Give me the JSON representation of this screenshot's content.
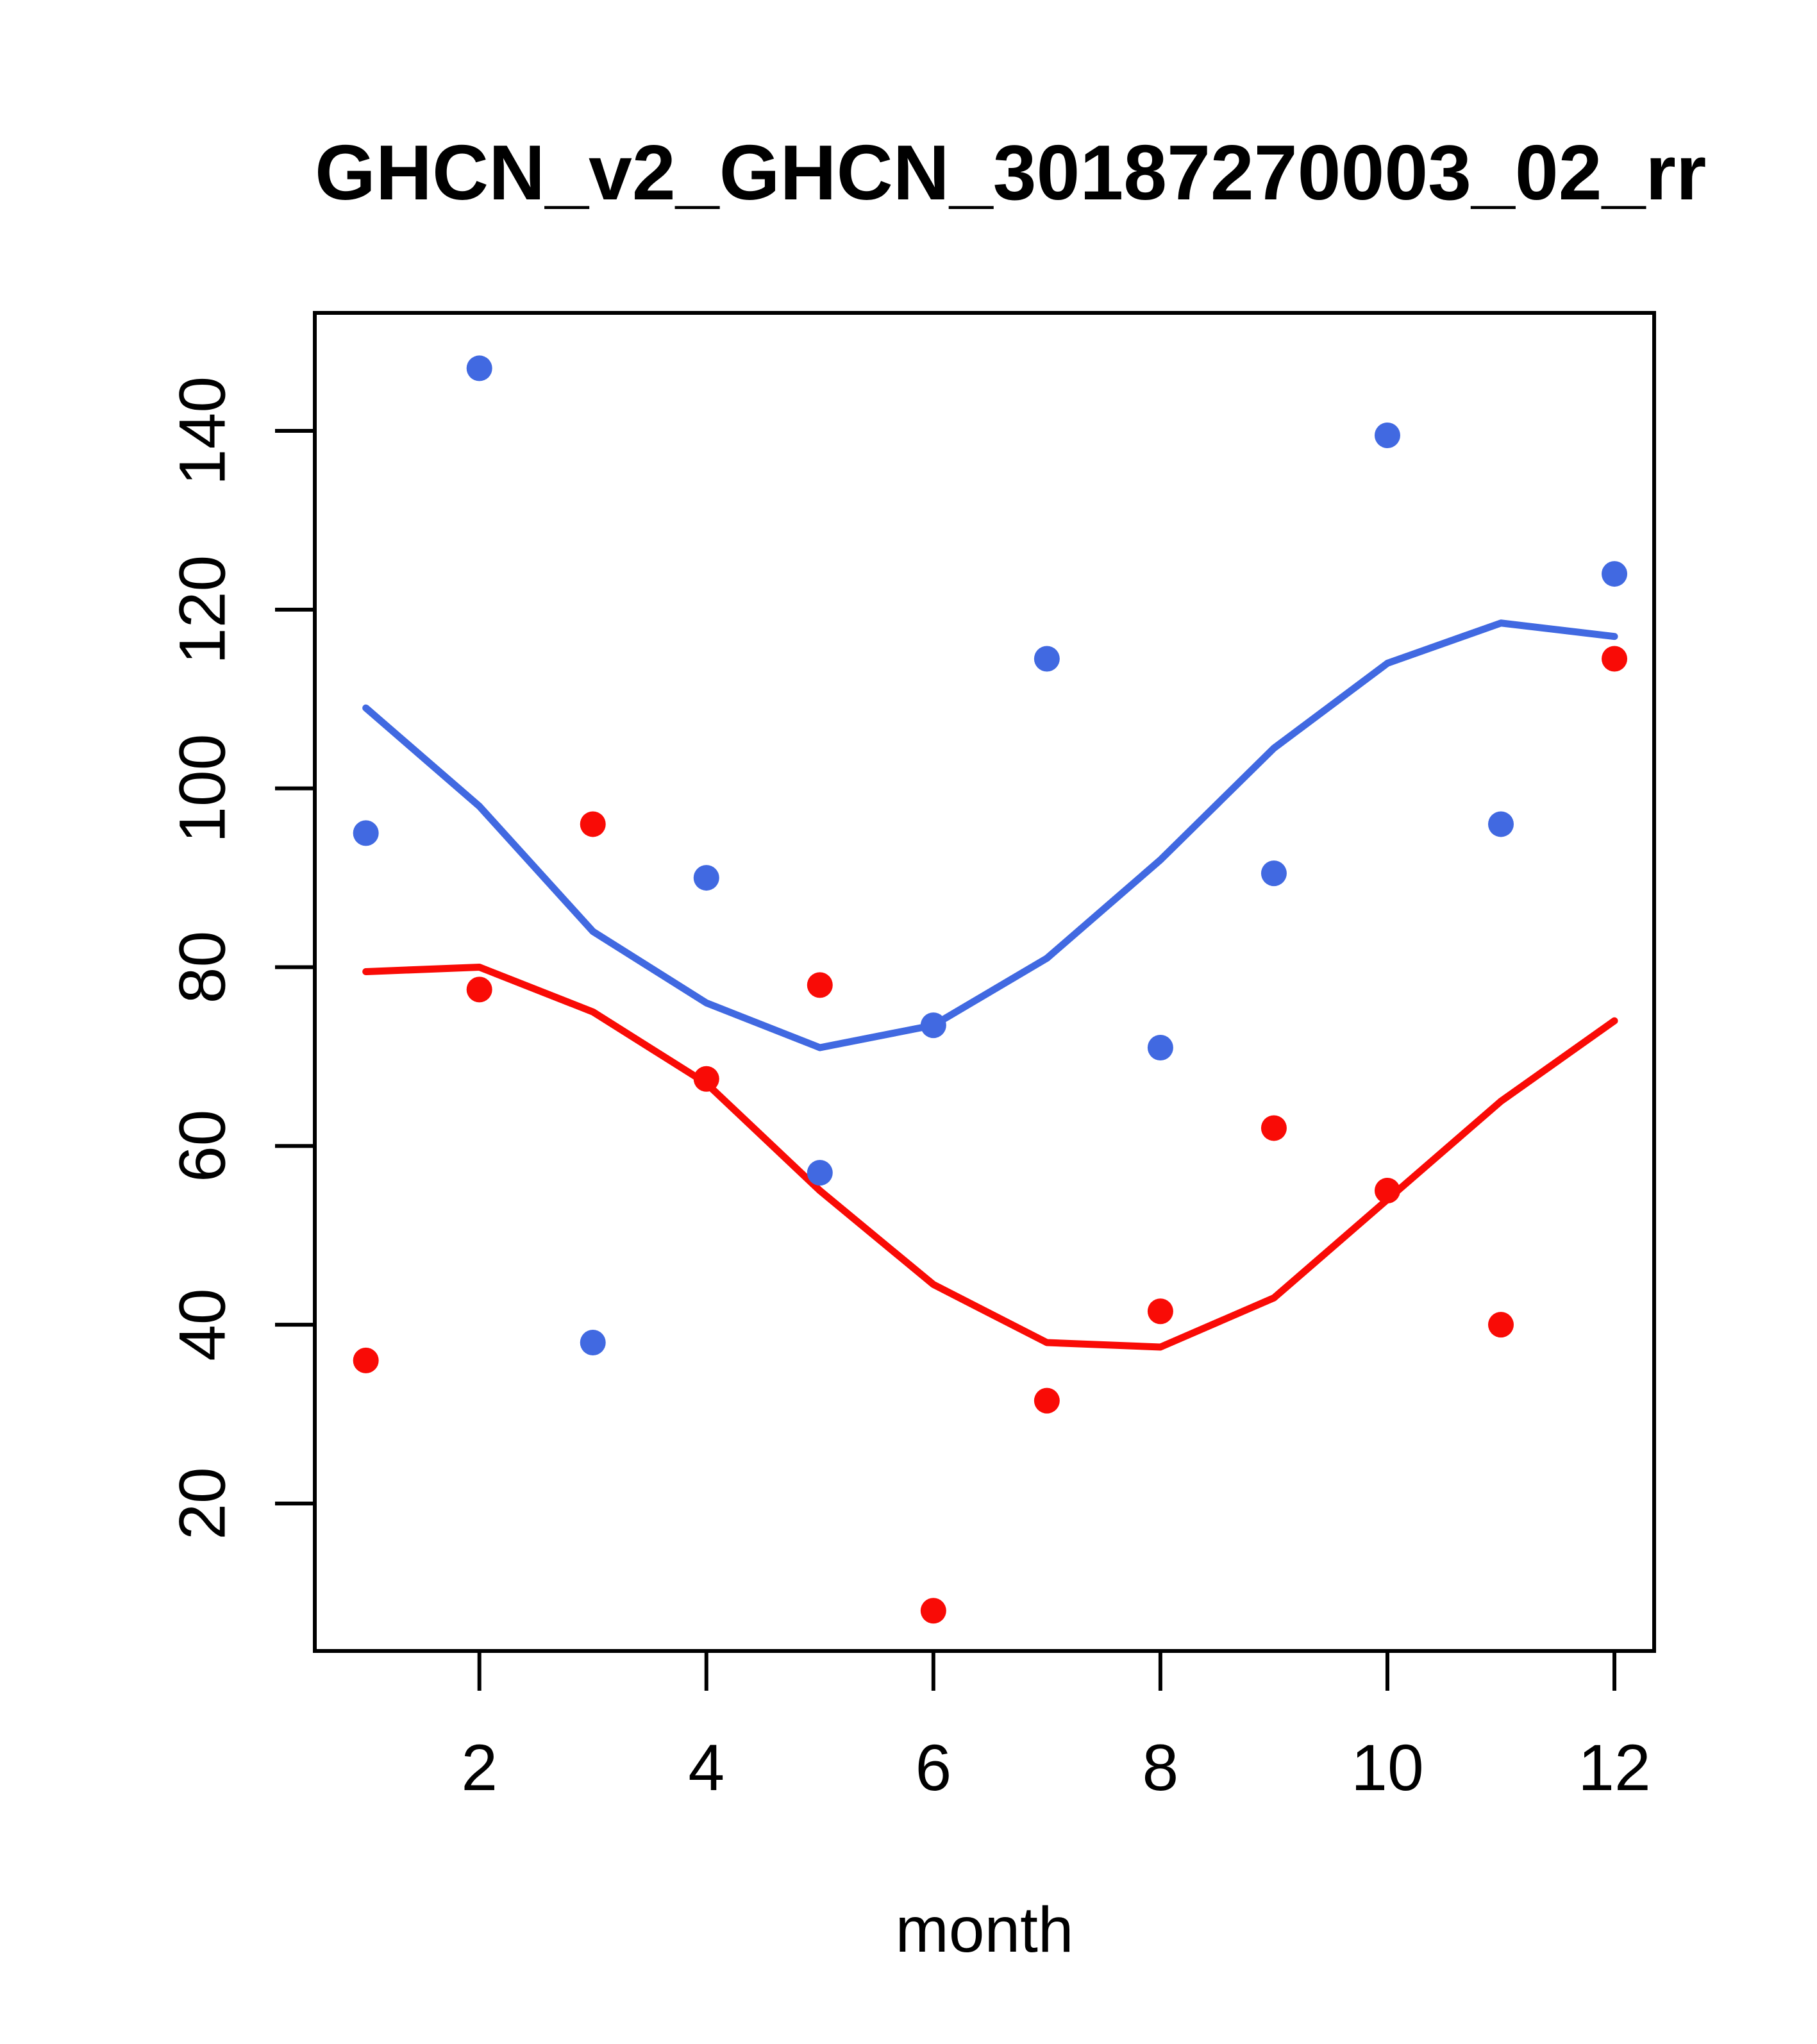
{
  "figure": {
    "background_color": "#FFFFFF",
    "axis_color": "#000000"
  },
  "chart_data": {
    "type": "scatter",
    "title": "GHCN_v2_GHCN_30187270003_02_rr",
    "xlabel": "month",
    "ylabel": "",
    "x": [
      1,
      2,
      3,
      4,
      5,
      6,
      7,
      8,
      9,
      10,
      11,
      12
    ],
    "series": [
      {
        "name": "blue-observations",
        "kind": "points",
        "color": "#4169E1",
        "values": [
          95,
          147,
          38,
          90,
          57,
          73.5,
          114.5,
          71,
          90.5,
          139.5,
          96,
          124
        ]
      },
      {
        "name": "red-observations",
        "kind": "points",
        "color": "#F90B06",
        "values": [
          36,
          77.5,
          96,
          67.5,
          78,
          8,
          31.5,
          41.5,
          62,
          55,
          40,
          114.5
        ]
      },
      {
        "name": "blue-lowess",
        "kind": "line",
        "color": "#4169E1",
        "values": [
          109,
          98,
          84,
          76,
          71,
          73.5,
          81,
          92,
          104.5,
          114,
          118.5,
          117
        ]
      },
      {
        "name": "red-lowess",
        "kind": "line",
        "color": "#F90B06",
        "values": [
          79.5,
          80,
          75,
          67,
          55,
          44.5,
          38,
          37.5,
          43,
          54,
          65,
          74
        ]
      }
    ],
    "x_ticks": [
      2,
      4,
      6,
      8,
      10,
      12
    ],
    "y_ticks": [
      20,
      40,
      60,
      80,
      100,
      120,
      140
    ],
    "x_range": [
      0.55,
      12.35
    ],
    "y_range": [
      3.5,
      153.2
    ],
    "grid": false,
    "legend": null
  }
}
